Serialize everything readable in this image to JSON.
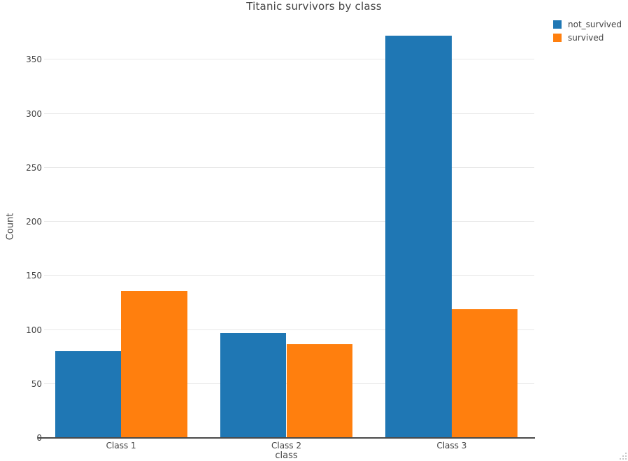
{
  "chart_data": {
    "type": "bar",
    "bar_mode": "grouped",
    "title": "Titanic survivors by class",
    "categories": [
      "Class 1",
      "Class 2",
      "Class 3"
    ],
    "series": [
      {
        "name": "not_survived",
        "color": "#1f77b4",
        "values": [
          80,
          97,
          372
        ]
      },
      {
        "name": "survived",
        "color": "#ff7f0e",
        "values": [
          136,
          87,
          119
        ]
      }
    ],
    "xlabel": "class",
    "ylabel": "Count",
    "ylim": [
      0,
      391
    ],
    "yticks": [
      0,
      50,
      100,
      150,
      200,
      250,
      300,
      350
    ],
    "grid": true,
    "legend_position": "top-right",
    "bargap": 0.2
  },
  "style": {
    "background": "#ffffff",
    "text_color": "#444444",
    "gridline_color": "#e8e8e8",
    "zeroline_color": "#4a4a4a",
    "grip_color": "#c7c7c7"
  },
  "icons": {
    "resize_grip": "resize-grip-icon"
  }
}
